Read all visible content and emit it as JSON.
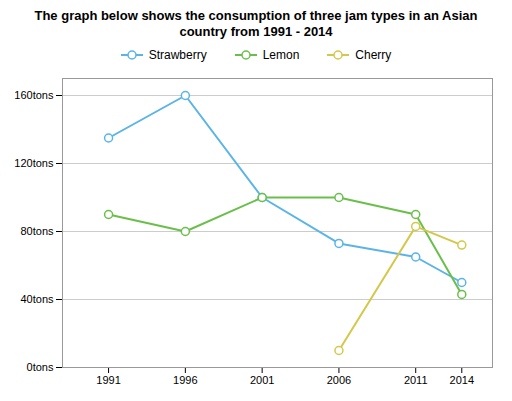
{
  "chart_data": {
    "type": "line",
    "title": "The graph below shows the consumption of three jam types in an Asian\ncountry from 1991 - 2014",
    "x": [
      1991,
      1996,
      2001,
      2006,
      2011,
      2014
    ],
    "series": [
      {
        "name": "Strawberry",
        "color": "#5ab4e8",
        "marker": "o",
        "values": [
          135,
          160,
          100,
          73,
          65,
          50
        ]
      },
      {
        "name": "Lemon",
        "color": "#6abf4b",
        "marker": "o",
        "values": [
          90,
          80,
          100,
          100,
          90,
          43
        ]
      },
      {
        "name": "Cherry",
        "color": "#d4c84a",
        "marker": "o",
        "values": [
          null,
          null,
          null,
          10,
          83,
          72
        ]
      }
    ],
    "xlim": [
      1988,
      2016
    ],
    "xticks": [
      1991,
      1996,
      2001,
      2006,
      2011,
      2014
    ],
    "ylim": [
      0,
      170
    ],
    "yticks": [
      {
        "value": 0,
        "label": "0tons"
      },
      {
        "value": 40,
        "label": "40tons"
      },
      {
        "value": 80,
        "label": "80tons"
      },
      {
        "value": 120,
        "label": "120tons"
      },
      {
        "value": 160,
        "label": "160tons"
      }
    ],
    "grid": true,
    "legend": "top"
  }
}
